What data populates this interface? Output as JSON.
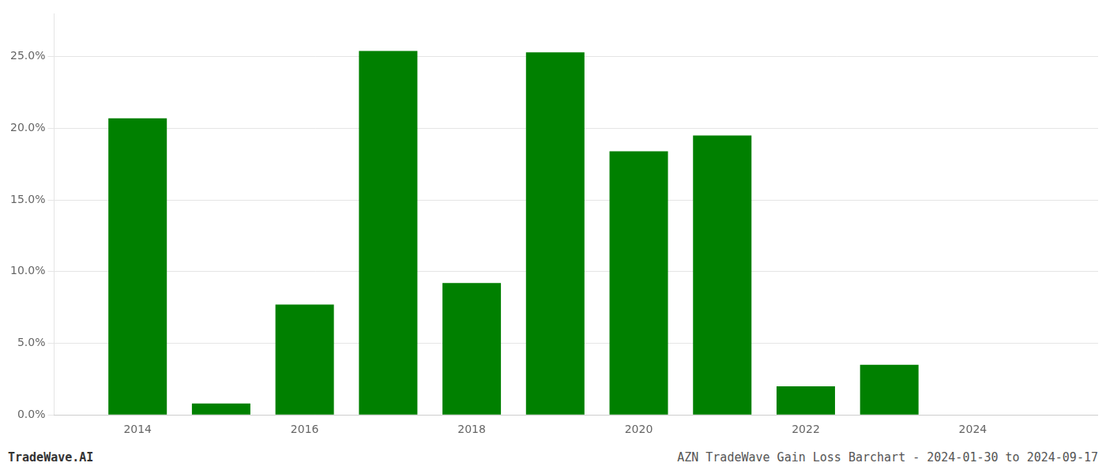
{
  "chart_data": {
    "type": "bar",
    "x": [
      2014,
      2015,
      2016,
      2017,
      2018,
      2019,
      2020,
      2021,
      2022,
      2023,
      2024
    ],
    "values": [
      0.207,
      0.008,
      0.077,
      0.254,
      0.092,
      0.253,
      0.184,
      0.195,
      0.02,
      0.035,
      0.0
    ],
    "color": "#008000",
    "xlim": [
      2013.0,
      2025.5
    ],
    "xticks": [
      2014,
      2016,
      2018,
      2020,
      2022,
      2024
    ],
    "ylim": [
      0,
      0.28
    ],
    "yticks": [
      {
        "value": 0.0,
        "label": "0.0%"
      },
      {
        "value": 0.05,
        "label": "5.0%"
      },
      {
        "value": 0.1,
        "label": "10.0%"
      },
      {
        "value": 0.15,
        "label": "15.0%"
      },
      {
        "value": 0.2,
        "label": "20.0%"
      },
      {
        "value": 0.25,
        "label": "25.0%"
      }
    ],
    "grid": "y",
    "annotations": [
      "TradeWave.AI",
      "AZN TradeWave Gain Loss Barchart - 2024-01-30 to 2024-09-17"
    ]
  }
}
